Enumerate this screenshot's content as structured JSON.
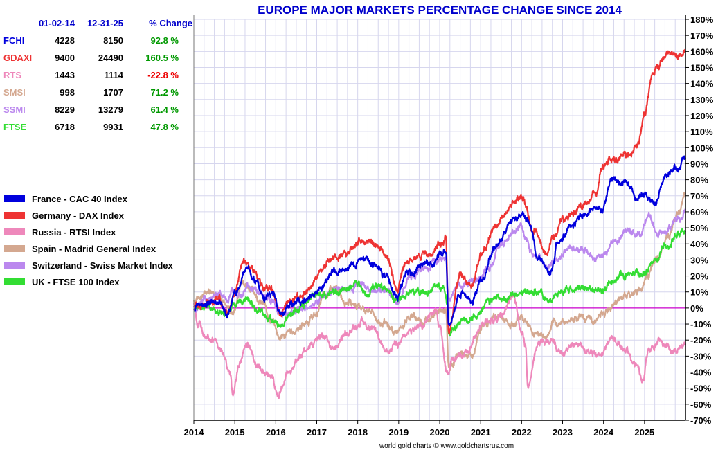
{
  "chart_data": {
    "type": "line",
    "title": "EUROPE MAJOR MARKETS PERCENTAGE CHANGE SINCE 2014",
    "credit": "world gold charts © www.goldchartsrus.com",
    "x_ticks": [
      "2014",
      "2015",
      "2016",
      "2017",
      "2018",
      "2019",
      "2020",
      "2021",
      "2022",
      "2023",
      "2024",
      "2025"
    ],
    "x_range": [
      2014.0,
      2026.0
    ],
    "ylim": [
      -70,
      180
    ],
    "y_ticks": [
      180,
      170,
      160,
      150,
      140,
      130,
      120,
      110,
      100,
      90,
      80,
      70,
      60,
      50,
      40,
      30,
      20,
      10,
      0,
      -10,
      -20,
      -30,
      -40,
      -50,
      -60,
      -70
    ],
    "y_unit": "%",
    "grid": true,
    "zero_line_color": "#cc00cc",
    "table": {
      "headers": [
        "01-02-14",
        "12-31-25",
        "% Change"
      ],
      "rows": [
        {
          "ticker": "FCHI",
          "start": "4228",
          "end": "8150",
          "change": "92.8 %",
          "color": "#0000dd",
          "change_color": "#009900"
        },
        {
          "ticker": "GDAXI",
          "start": "9400",
          "end": "24490",
          "change": "160.5 %",
          "color": "#ee3333",
          "change_color": "#009900"
        },
        {
          "ticker": "RTS",
          "start": "1443",
          "end": "1114",
          "change": "-22.8 %",
          "color": "#ee88bb",
          "change_color": "#ee0000"
        },
        {
          "ticker": "SMSI",
          "start": "998",
          "end": "1707",
          "change": "71.2 %",
          "color": "#d4a890",
          "change_color": "#009900"
        },
        {
          "ticker": "SSMI",
          "start": "8229",
          "end": "13279",
          "change": "61.4 %",
          "color": "#bb88ee",
          "change_color": "#009900"
        },
        {
          "ticker": "FTSE",
          "start": "6718",
          "end": "9931",
          "change": "47.8 %",
          "color": "#33dd33",
          "change_color": "#009900"
        }
      ]
    },
    "series": [
      {
        "name": "France - CAC 40 Index",
        "color": "#0000dd",
        "x": [
          2014.0,
          2014.3,
          2014.6,
          2014.8,
          2015.0,
          2015.3,
          2015.5,
          2015.7,
          2015.9,
          2016.1,
          2016.4,
          2016.6,
          2016.9,
          2017.1,
          2017.4,
          2017.7,
          2017.9,
          2018.1,
          2018.4,
          2018.7,
          2018.95,
          2019.2,
          2019.5,
          2019.8,
          2020.0,
          2020.15,
          2020.22,
          2020.5,
          2020.8,
          2021.0,
          2021.4,
          2021.8,
          2022.0,
          2022.2,
          2022.4,
          2022.7,
          2022.9,
          2023.2,
          2023.5,
          2023.8,
          2023.95,
          2024.2,
          2024.5,
          2024.8,
          2025.0,
          2025.25,
          2025.5,
          2025.8,
          2026.0
        ],
        "y": [
          0,
          2,
          5,
          -4,
          8,
          25,
          18,
          8,
          10,
          -3,
          1,
          5,
          8,
          14,
          22,
          24,
          27,
          30,
          28,
          20,
          8,
          22,
          25,
          28,
          34,
          36,
          -12,
          8,
          4,
          18,
          40,
          55,
          58,
          55,
          30,
          22,
          40,
          52,
          58,
          62,
          60,
          80,
          78,
          68,
          72,
          65,
          82,
          88,
          93
        ]
      },
      {
        "name": "Germany - DAX Index",
        "color": "#ee3333",
        "x": [
          2014.0,
          2014.3,
          2014.6,
          2014.8,
          2015.0,
          2015.2,
          2015.4,
          2015.7,
          2015.9,
          2016.1,
          2016.4,
          2016.6,
          2016.9,
          2017.1,
          2017.4,
          2017.7,
          2017.9,
          2018.1,
          2018.4,
          2018.7,
          2018.95,
          2019.2,
          2019.5,
          2019.8,
          2020.0,
          2020.15,
          2020.22,
          2020.5,
          2020.8,
          2021.0,
          2021.4,
          2021.8,
          2022.0,
          2022.3,
          2022.6,
          2022.8,
          2023.0,
          2023.3,
          2023.6,
          2023.8,
          2024.0,
          2024.3,
          2024.6,
          2024.8,
          2025.0,
          2025.2,
          2025.3,
          2025.5,
          2025.8,
          2026.0
        ],
        "y": [
          0,
          3,
          6,
          -3,
          10,
          30,
          25,
          12,
          12,
          -2,
          5,
          8,
          14,
          24,
          32,
          34,
          38,
          42,
          40,
          32,
          12,
          28,
          33,
          34,
          40,
          45,
          -15,
          20,
          15,
          33,
          53,
          65,
          68,
          48,
          35,
          45,
          55,
          60,
          65,
          72,
          90,
          93,
          95,
          100,
          120,
          145,
          150,
          158,
          157,
          160
        ]
      },
      {
        "name": "Russia - RTSI Index",
        "color": "#ee88bb",
        "x": [
          2014.0,
          2014.1,
          2014.3,
          2014.5,
          2014.7,
          2014.9,
          2014.95,
          2015.1,
          2015.3,
          2015.6,
          2015.9,
          2016.05,
          2016.3,
          2016.6,
          2016.9,
          2017.1,
          2017.4,
          2017.7,
          2017.9,
          2018.1,
          2018.3,
          2018.7,
          2018.95,
          2019.3,
          2019.6,
          2019.9,
          2020.0,
          2020.2,
          2020.3,
          2020.6,
          2020.9,
          2021.1,
          2021.5,
          2021.8,
          2022.0,
          2022.1,
          2022.15,
          2022.4,
          2022.7,
          2023.0,
          2023.3,
          2023.6,
          2023.9,
          2024.2,
          2024.5,
          2024.8,
          2024.95,
          2025.1,
          2025.4,
          2025.7,
          2026.0
        ],
        "y": [
          3,
          -10,
          -15,
          -20,
          -28,
          -42,
          -55,
          -35,
          -22,
          -38,
          -42,
          -55,
          -40,
          -30,
          -22,
          -18,
          -25,
          -17,
          -12,
          -8,
          -12,
          -25,
          -22,
          -14,
          -10,
          -2,
          -12,
          -42,
          -32,
          -30,
          -15,
          -10,
          -5,
          8,
          -15,
          -25,
          -48,
          -22,
          -20,
          -28,
          -22,
          -28,
          -30,
          -18,
          -25,
          -35,
          -48,
          -25,
          -20,
          -28,
          -23
        ]
      },
      {
        "name": "Spain - Madrid General Index",
        "color": "#d4a890",
        "x": [
          2014.0,
          2014.2,
          2014.4,
          2014.7,
          2014.95,
          2015.2,
          2015.4,
          2015.7,
          2015.9,
          2016.1,
          2016.4,
          2016.7,
          2016.95,
          2017.2,
          2017.4,
          2017.7,
          2017.95,
          2018.3,
          2018.6,
          2018.95,
          2019.3,
          2019.6,
          2019.95,
          2020.15,
          2020.22,
          2020.5,
          2020.8,
          2021.0,
          2021.4,
          2021.8,
          2022.0,
          2022.3,
          2022.6,
          2022.8,
          2023.1,
          2023.4,
          2023.7,
          2023.95,
          2024.3,
          2024.6,
          2024.9,
          2025.1,
          2025.3,
          2025.6,
          2025.8,
          2026.0
        ],
        "y": [
          5,
          8,
          12,
          5,
          -3,
          18,
          12,
          2,
          -8,
          -18,
          -15,
          -10,
          -5,
          8,
          12,
          5,
          2,
          -2,
          -10,
          -15,
          -5,
          -8,
          -2,
          -2,
          -38,
          -28,
          -30,
          -12,
          -5,
          -10,
          -5,
          -15,
          -18,
          -10,
          -8,
          -5,
          -8,
          -5,
          5,
          8,
          12,
          22,
          30,
          45,
          58,
          71
        ]
      },
      {
        "name": "Switzerland - Swiss Market Index",
        "color": "#bb88ee",
        "x": [
          2014.0,
          2014.3,
          2014.6,
          2014.8,
          2015.0,
          2015.1,
          2015.3,
          2015.6,
          2015.9,
          2016.1,
          2016.4,
          2016.7,
          2016.95,
          2017.2,
          2017.5,
          2017.8,
          2018.1,
          2018.4,
          2018.7,
          2018.95,
          2019.3,
          2019.6,
          2019.95,
          2020.15,
          2020.22,
          2020.5,
          2020.9,
          2021.2,
          2021.5,
          2021.8,
          2021.95,
          2022.3,
          2022.6,
          2022.9,
          2023.2,
          2023.5,
          2023.8,
          2023.95,
          2024.3,
          2024.6,
          2024.9,
          2025.1,
          2025.3,
          2025.6,
          2025.8,
          2026.0
        ],
        "y": [
          0,
          5,
          10,
          5,
          12,
          5,
          15,
          8,
          5,
          -5,
          -3,
          0,
          2,
          8,
          12,
          12,
          15,
          10,
          12,
          5,
          20,
          25,
          30,
          32,
          5,
          15,
          18,
          25,
          40,
          48,
          50,
          35,
          25,
          30,
          38,
          35,
          32,
          32,
          42,
          48,
          45,
          58,
          48,
          50,
          55,
          61
        ]
      },
      {
        "name": "UK - FTSE 100 Index",
        "color": "#33dd33",
        "x": [
          2014.0,
          2014.3,
          2014.6,
          2014.8,
          2015.0,
          2015.3,
          2015.6,
          2015.9,
          2016.1,
          2016.4,
          2016.6,
          2016.9,
          2017.2,
          2017.5,
          2017.8,
          2018.0,
          2018.2,
          2018.5,
          2018.8,
          2018.95,
          2019.3,
          2019.6,
          2019.95,
          2020.1,
          2020.2,
          2020.22,
          2020.5,
          2020.9,
          2021.2,
          2021.5,
          2021.8,
          2022.0,
          2022.4,
          2022.7,
          2022.9,
          2023.1,
          2023.5,
          2023.9,
          2024.2,
          2024.5,
          2024.8,
          2025.0,
          2025.25,
          2025.5,
          2025.8,
          2026.0
        ],
        "y": [
          0,
          2,
          -3,
          -5,
          3,
          6,
          -2,
          -8,
          -10,
          -3,
          0,
          8,
          8,
          10,
          12,
          14,
          8,
          15,
          10,
          5,
          10,
          10,
          15,
          12,
          0,
          -15,
          -8,
          -5,
          3,
          6,
          8,
          10,
          10,
          5,
          10,
          12,
          12,
          10,
          15,
          20,
          22,
          22,
          30,
          38,
          45,
          48
        ]
      }
    ]
  }
}
